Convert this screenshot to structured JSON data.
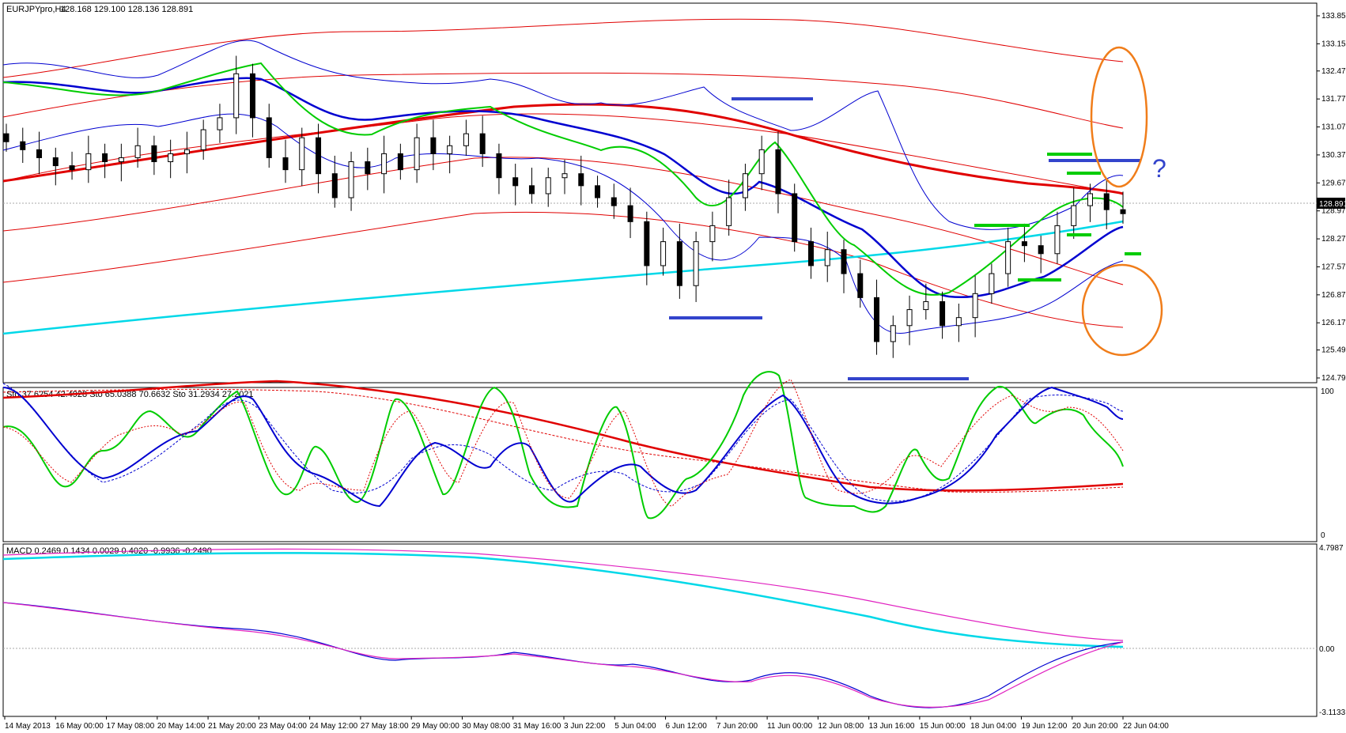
{
  "chart_data": {
    "type": "candlestick",
    "symbol_header": "EURJPYpro,H4",
    "ohlc_header": "128.168 129.100 128.136 128.891",
    "last_price_label": "128.891",
    "price_ticks": [
      "133.850",
      "133.150",
      "132.470",
      "131.770",
      "131.070",
      "130.370",
      "129.670",
      "128.970",
      "128.270",
      "127.570",
      "126.870",
      "126.170",
      "125.490",
      "124.790"
    ],
    "price_range": [
      124.79,
      133.85
    ],
    "x_labels": [
      "14 May 2013",
      "16 May 00:00",
      "17 May 08:00",
      "20 May 14:00",
      "21 May 20:00",
      "23 May 04:00",
      "24 May 12:00",
      "27 May 18:00",
      "29 May 00:00",
      "30 May 08:00",
      "31 May 16:00",
      "3 Jun 22:00",
      "5 Jun 04:00",
      "6 Jun 12:00",
      "7 Jun 20:00",
      "11 Jun 00:00",
      "12 Jun 08:00",
      "13 Jun 16:00",
      "15 Jun 00:00",
      "18 Jun 04:00",
      "19 Jun 12:00",
      "20 Jun 20:00",
      "22 Jun 04:00"
    ],
    "candles_close_path": [
      130.7,
      130.5,
      130.3,
      130.1,
      130.0,
      130.4,
      130.2,
      130.3,
      130.6,
      130.2,
      130.4,
      130.5,
      131.0,
      131.3,
      132.4,
      131.3,
      130.3,
      130.0,
      130.8,
      129.9,
      129.3,
      130.2,
      129.9,
      130.4,
      130.0,
      130.8,
      130.4,
      130.6,
      130.9,
      130.4,
      129.8,
      129.6,
      129.4,
      129.8,
      129.9,
      129.6,
      129.3,
      129.1,
      128.7,
      127.6,
      128.2,
      127.1,
      128.2,
      128.6,
      129.3,
      129.9,
      130.5,
      129.4,
      128.2,
      127.6,
      128.0,
      127.4,
      126.8,
      125.7,
      126.1,
      126.5,
      126.7,
      126.1,
      126.3,
      126.9,
      127.4,
      128.2,
      128.1,
      127.9,
      128.6,
      129.1,
      129.4,
      129.0,
      128.9
    ],
    "indicator_sto_label": "Sto 37.6254 42.4928   Sto 65.0388 70.6632   Sto 31.2934 27.2021",
    "sto_ticks": [
      "100",
      "0"
    ],
    "indicator_macd_label": "MACD 0.2469 0.1434 0.0029 0.4020 -0.9936 -0.2490",
    "macd_ticks": [
      "4.7987",
      "0.00",
      "-3.1133"
    ],
    "annotations": {
      "question_mark": "?"
    },
    "colors": {
      "red": "#e00000",
      "blue": "#0000d0",
      "green": "#00cc00",
      "cyan": "#00d8e8",
      "orange": "#f07d1a",
      "navy_line": "#3344cc",
      "magenta": "#e020c0"
    }
  }
}
